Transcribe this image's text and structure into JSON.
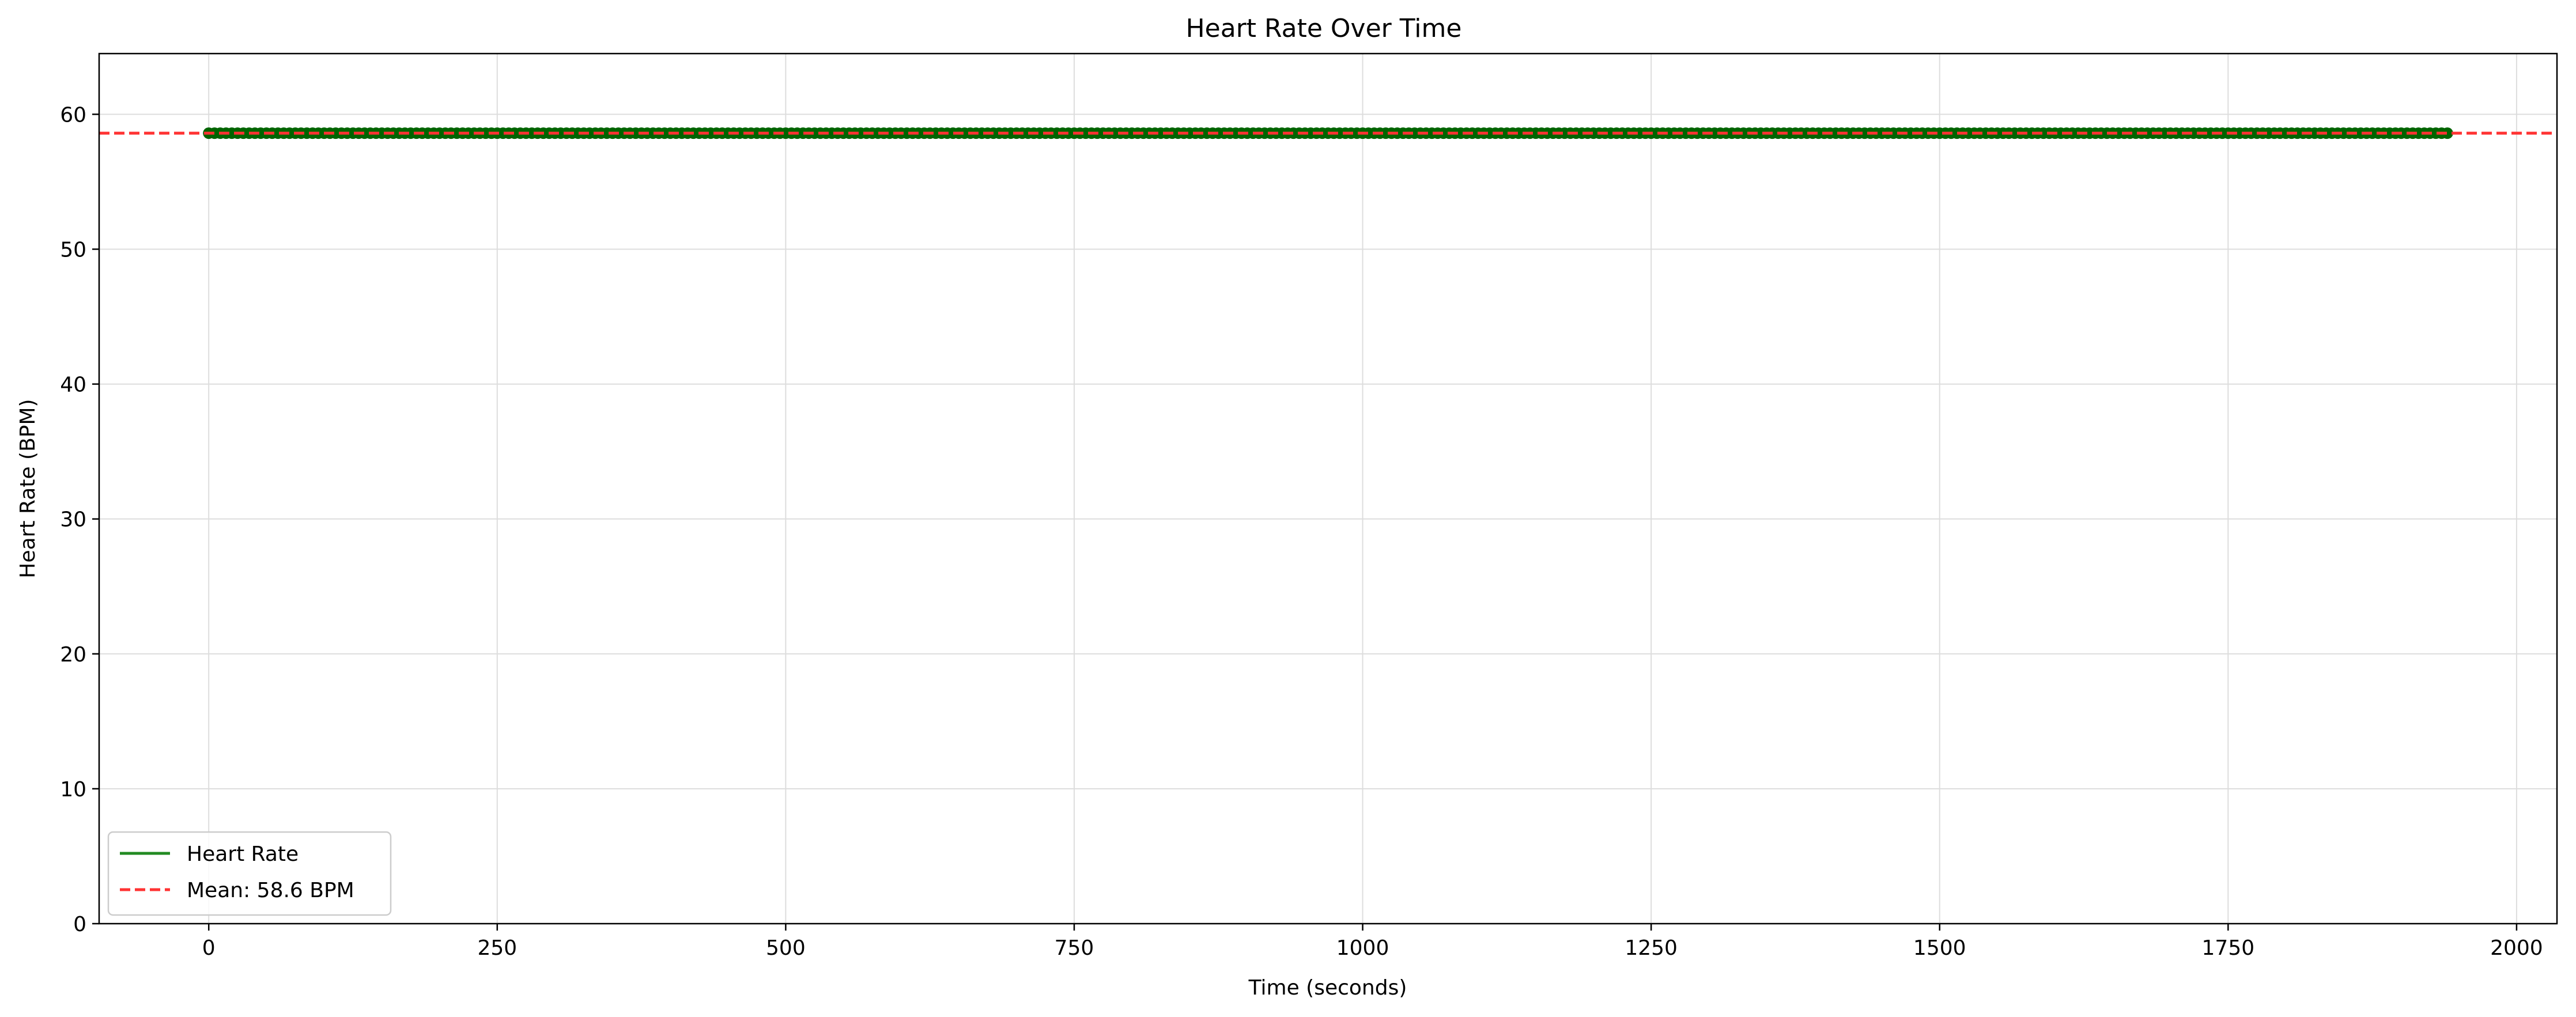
{
  "chart_data": {
    "type": "line",
    "title": "Heart Rate Over Time",
    "xlabel": "Time (seconds)",
    "ylabel": "Heart Rate (BPM)",
    "xlim": [
      -95,
      2035
    ],
    "ylim": [
      0,
      64.5
    ],
    "xticks": [
      0,
      250,
      500,
      750,
      1000,
      1250,
      1500,
      1750,
      2000
    ],
    "yticks": [
      0,
      10,
      20,
      30,
      40,
      50,
      60
    ],
    "grid": true,
    "legend_position": "lower-left",
    "series": [
      {
        "name": "Heart Rate",
        "color": "#228B22",
        "marker_color": "#006400",
        "x_start": 0,
        "x_end": 1940,
        "sample_interval": 5,
        "value": 58.6
      }
    ],
    "reference_lines": [
      {
        "label": "Mean: 58.6 BPM",
        "value": 58.6,
        "style": "dashed",
        "color": "#FF3333"
      }
    ]
  }
}
